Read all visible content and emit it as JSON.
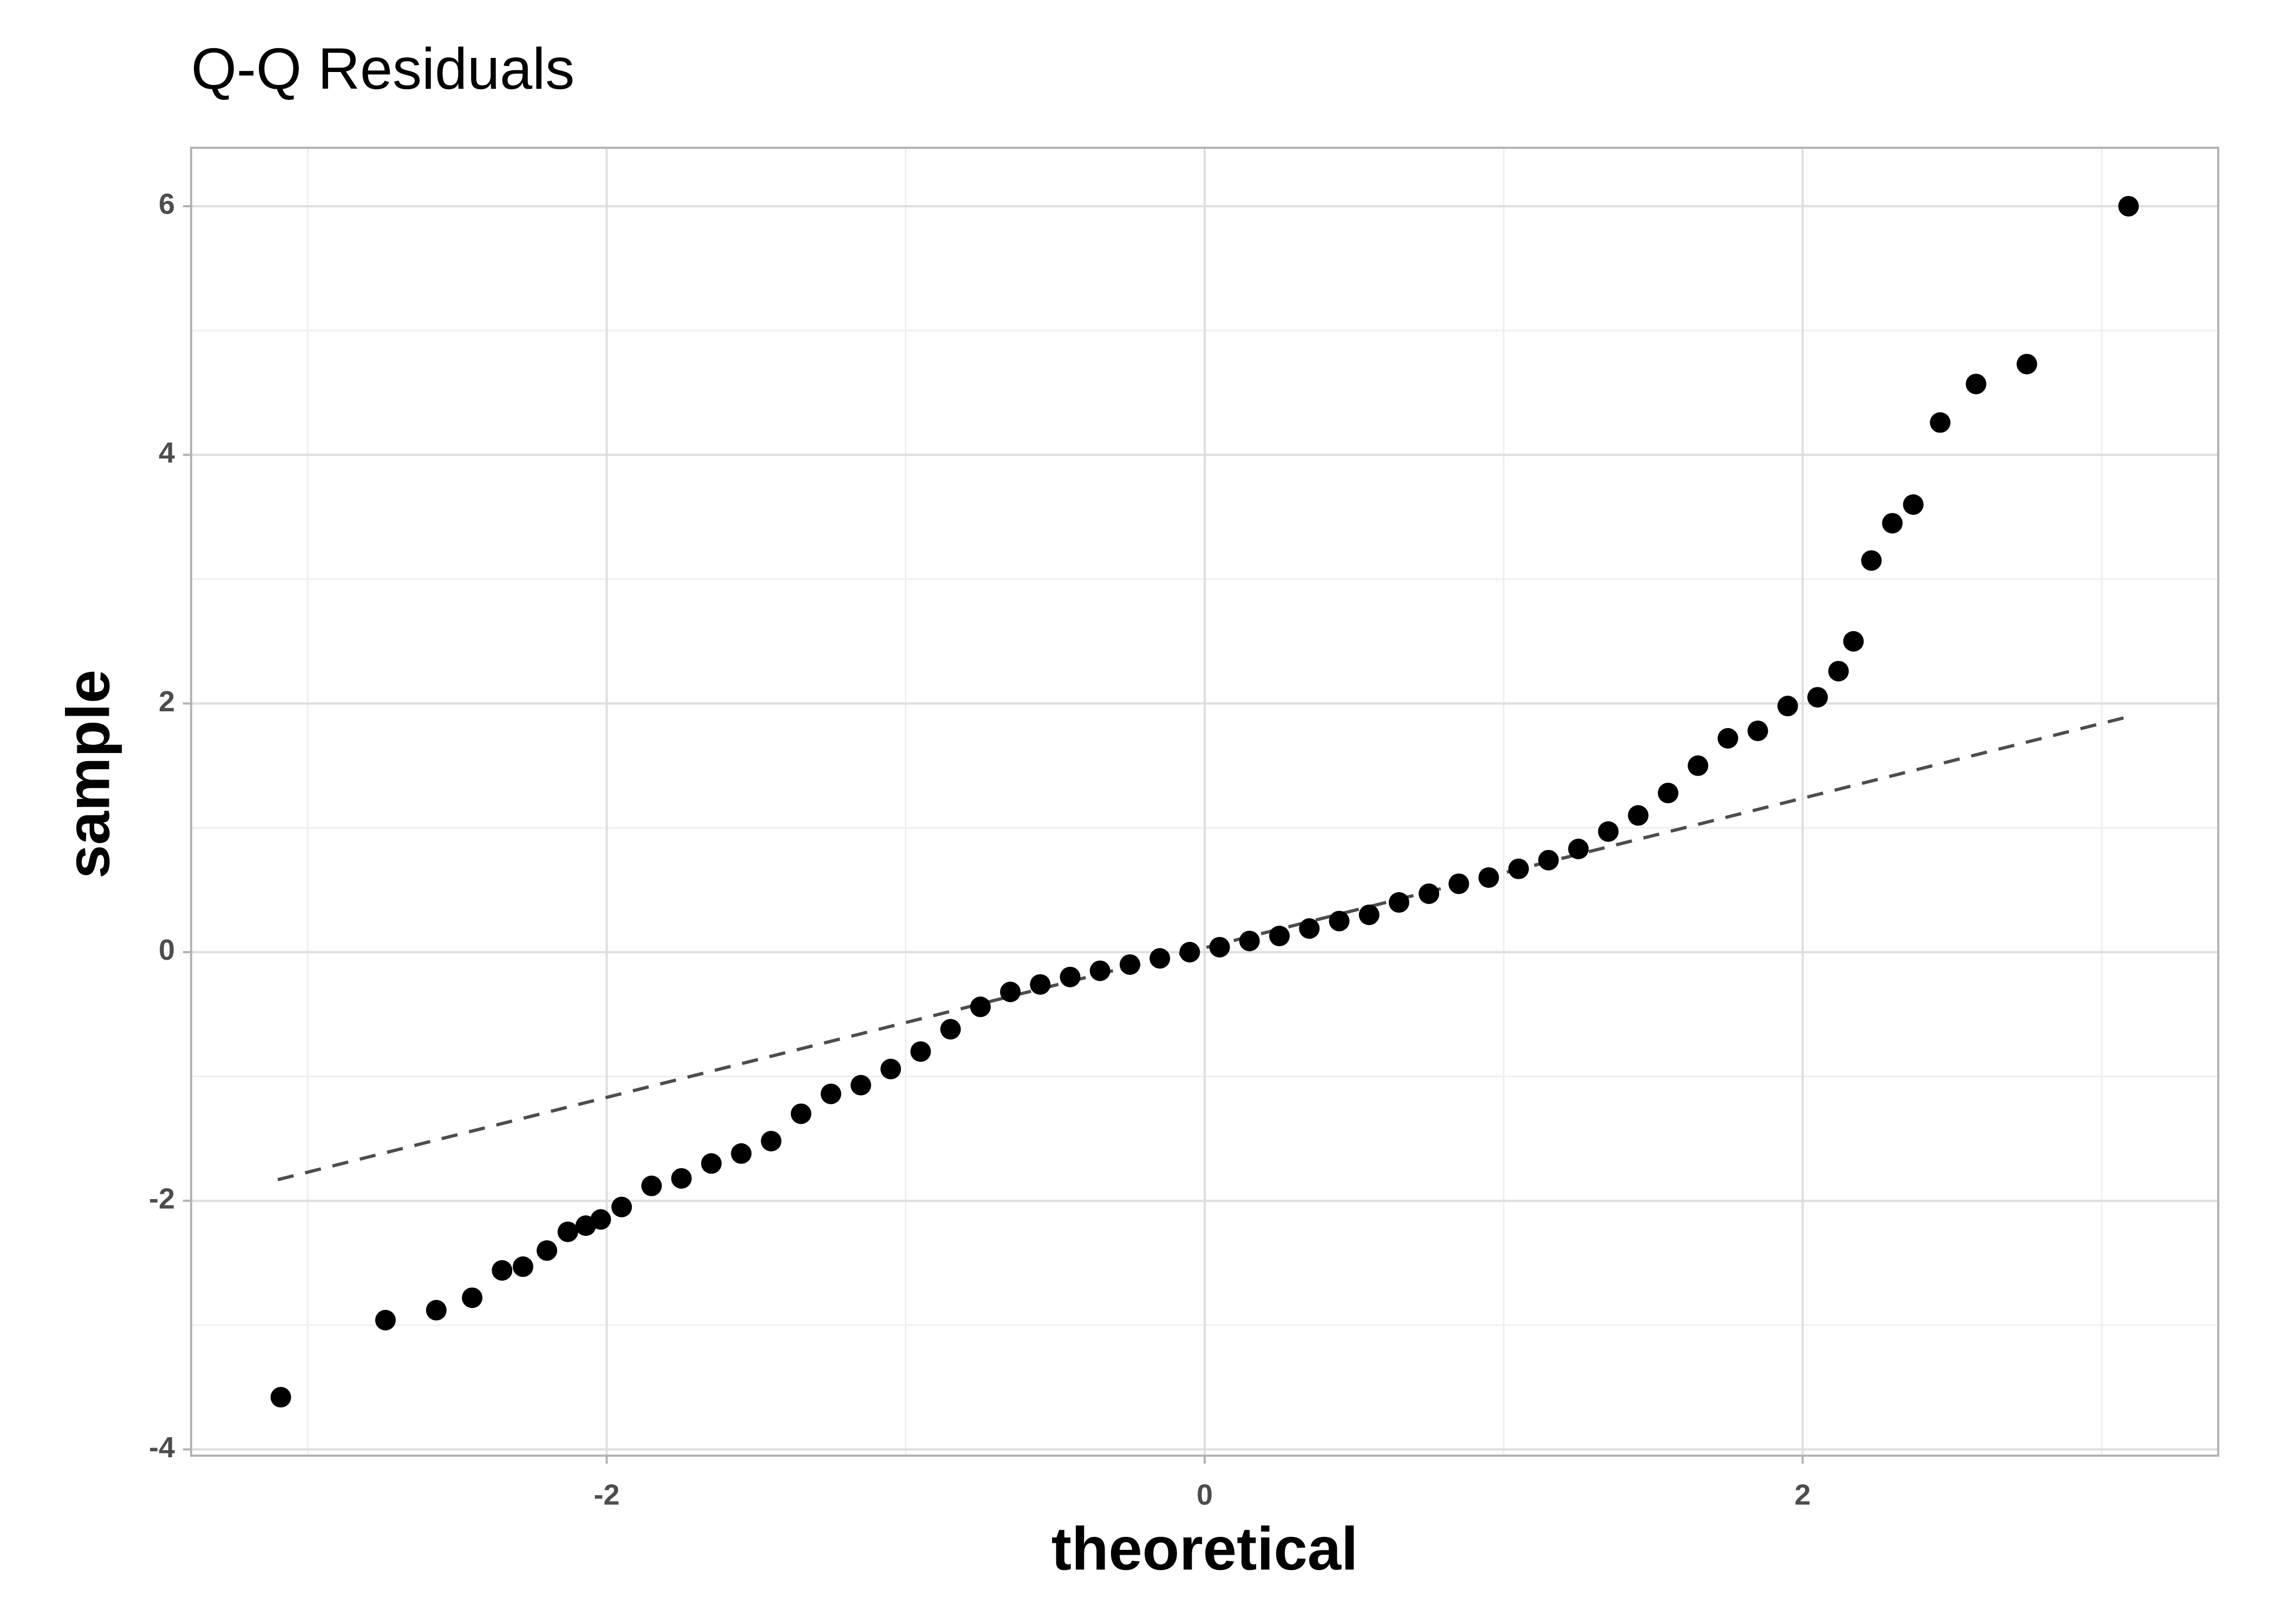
{
  "chart_data": {
    "type": "scatter",
    "title": "Q-Q Residuals",
    "x_label": "theoretical",
    "y_label": "sample",
    "xlim": [
      -3.39,
      3.39
    ],
    "ylim": [
      -4.05,
      6.47
    ],
    "xticks": [
      -2,
      0,
      2
    ],
    "yticks": [
      -4,
      -2,
      0,
      2,
      4,
      6
    ],
    "xminor": [
      -3,
      -1,
      1,
      3
    ],
    "yminor": [
      -3,
      -1,
      1,
      3,
      5
    ],
    "grid": true,
    "color": "#000000",
    "x": [
      -3.09,
      -2.74,
      -2.57,
      -2.45,
      -2.35,
      -2.28,
      -2.2,
      -2.13,
      -2.07,
      -2.02,
      -1.95,
      -1.85,
      -1.75,
      -1.65,
      -1.55,
      -1.45,
      -1.35,
      -1.25,
      -1.15,
      -1.05,
      -0.95,
      -0.85,
      -0.75,
      -0.65,
      -0.55,
      -0.45,
      -0.35,
      -0.25,
      -0.15,
      -0.05,
      0.05,
      0.15,
      0.25,
      0.35,
      0.45,
      0.55,
      0.65,
      0.75,
      0.85,
      0.95,
      1.05,
      1.15,
      1.25,
      1.35,
      1.45,
      1.55,
      1.65,
      1.75,
      1.85,
      1.95,
      2.05,
      2.12,
      2.17,
      2.23,
      2.3,
      2.37,
      2.46,
      2.58,
      2.75,
      3.09
    ],
    "values": [
      -3.58,
      -2.96,
      -2.88,
      -2.78,
      -2.56,
      -2.53,
      -2.4,
      -2.25,
      -2.2,
      -2.15,
      -2.05,
      -1.88,
      -1.82,
      -1.7,
      -1.62,
      -1.52,
      -1.3,
      -1.14,
      -1.07,
      -0.94,
      -0.8,
      -0.62,
      -0.44,
      -0.32,
      -0.26,
      -0.2,
      -0.15,
      -0.1,
      -0.05,
      0,
      0.04,
      0.09,
      0.13,
      0.19,
      0.25,
      0.3,
      0.4,
      0.47,
      0.55,
      0.6,
      0.67,
      0.74,
      0.83,
      0.97,
      1.1,
      1.28,
      1.5,
      1.72,
      1.78,
      1.98,
      2.05,
      2.26,
      2.5,
      3.15,
      3.45,
      3.6,
      4.26,
      4.57,
      4.73,
      6.0
    ],
    "reference_line": {
      "x": [
        -3.1,
        3.1
      ],
      "y": [
        -1.83,
        1.9
      ],
      "color": "#4d4d4d"
    }
  }
}
